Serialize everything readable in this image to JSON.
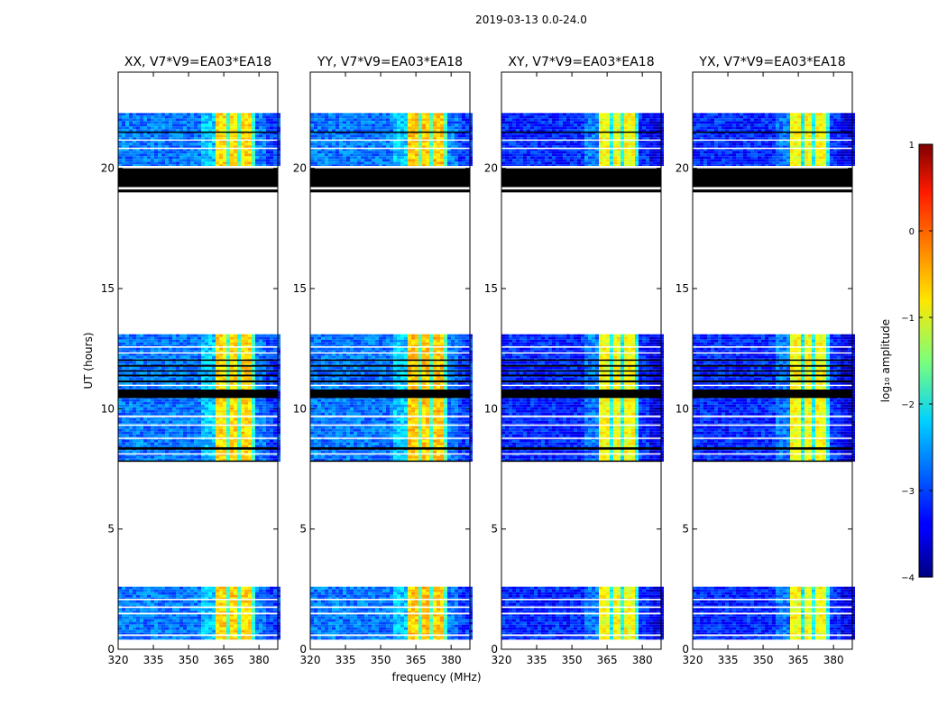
{
  "chart_data": {
    "type": "heatmap",
    "title": "2019-03-13 0.0-24.0",
    "xlabel": "frequency (MHz)",
    "ylabel": "UT (hours)",
    "xlim": [
      320,
      388
    ],
    "ylim": [
      0,
      24
    ],
    "xticks": [
      320,
      335,
      350,
      365,
      380
    ],
    "yticks": [
      0,
      5,
      10,
      15,
      20
    ],
    "panels": [
      {
        "title": "XX, V7*V9=EA03*EA18",
        "band_log_amp": -0.7,
        "bg_log_amp": -2.8
      },
      {
        "title": "YY, V7*V9=EA03*EA18",
        "band_log_amp": -0.6,
        "bg_log_amp": -2.8
      },
      {
        "title": "XY, V7*V9=EA03*EA18",
        "band_log_amp": -0.9,
        "bg_log_amp": -3.2
      },
      {
        "title": "YX, V7*V9=EA03*EA18",
        "band_log_amp": -0.9,
        "bg_log_amp": -3.2
      }
    ],
    "segments": [
      {
        "ut_start": 0.4,
        "ut_end": 2.6
      },
      {
        "ut_start": 7.8,
        "ut_end": 13.1
      },
      {
        "ut_start": 20.1,
        "ut_end": 22.3
      }
    ],
    "bright_band_mhz": [
      362,
      379
    ],
    "band_notches_mhz": [
      367,
      372,
      377
    ],
    "flagged_black_ut": [
      [
        19.0,
        19.12
      ],
      [
        19.22,
        20.0
      ],
      [
        10.45,
        10.8
      ],
      [
        11.1,
        11.18
      ],
      [
        11.35,
        11.42
      ],
      [
        11.55,
        11.6
      ],
      [
        11.75,
        11.82
      ],
      [
        12.0,
        12.05
      ],
      [
        8.3,
        8.4
      ],
      [
        7.8,
        7.85
      ],
      [
        21.5,
        21.53
      ]
    ],
    "flagged_white_ut": [
      [
        0.55,
        0.62
      ],
      [
        1.45,
        1.52
      ],
      [
        1.72,
        1.78
      ],
      [
        2.05,
        2.1
      ],
      [
        8.1,
        8.15
      ],
      [
        8.75,
        8.8
      ],
      [
        9.3,
        9.35
      ],
      [
        9.65,
        9.72
      ],
      [
        10.95,
        11.0
      ],
      [
        12.3,
        12.35
      ],
      [
        12.55,
        12.6
      ],
      [
        20.05,
        20.1
      ],
      [
        20.8,
        20.86
      ],
      [
        21.15,
        21.2
      ]
    ],
    "colorbar": {
      "label": "log₁₀ amplitude",
      "range": [
        -4,
        1
      ],
      "ticks": [
        "1",
        "0",
        "−1",
        "−2",
        "−3",
        "−4"
      ],
      "tick_values": [
        1,
        0,
        -1,
        -2,
        -3,
        -4
      ]
    }
  }
}
